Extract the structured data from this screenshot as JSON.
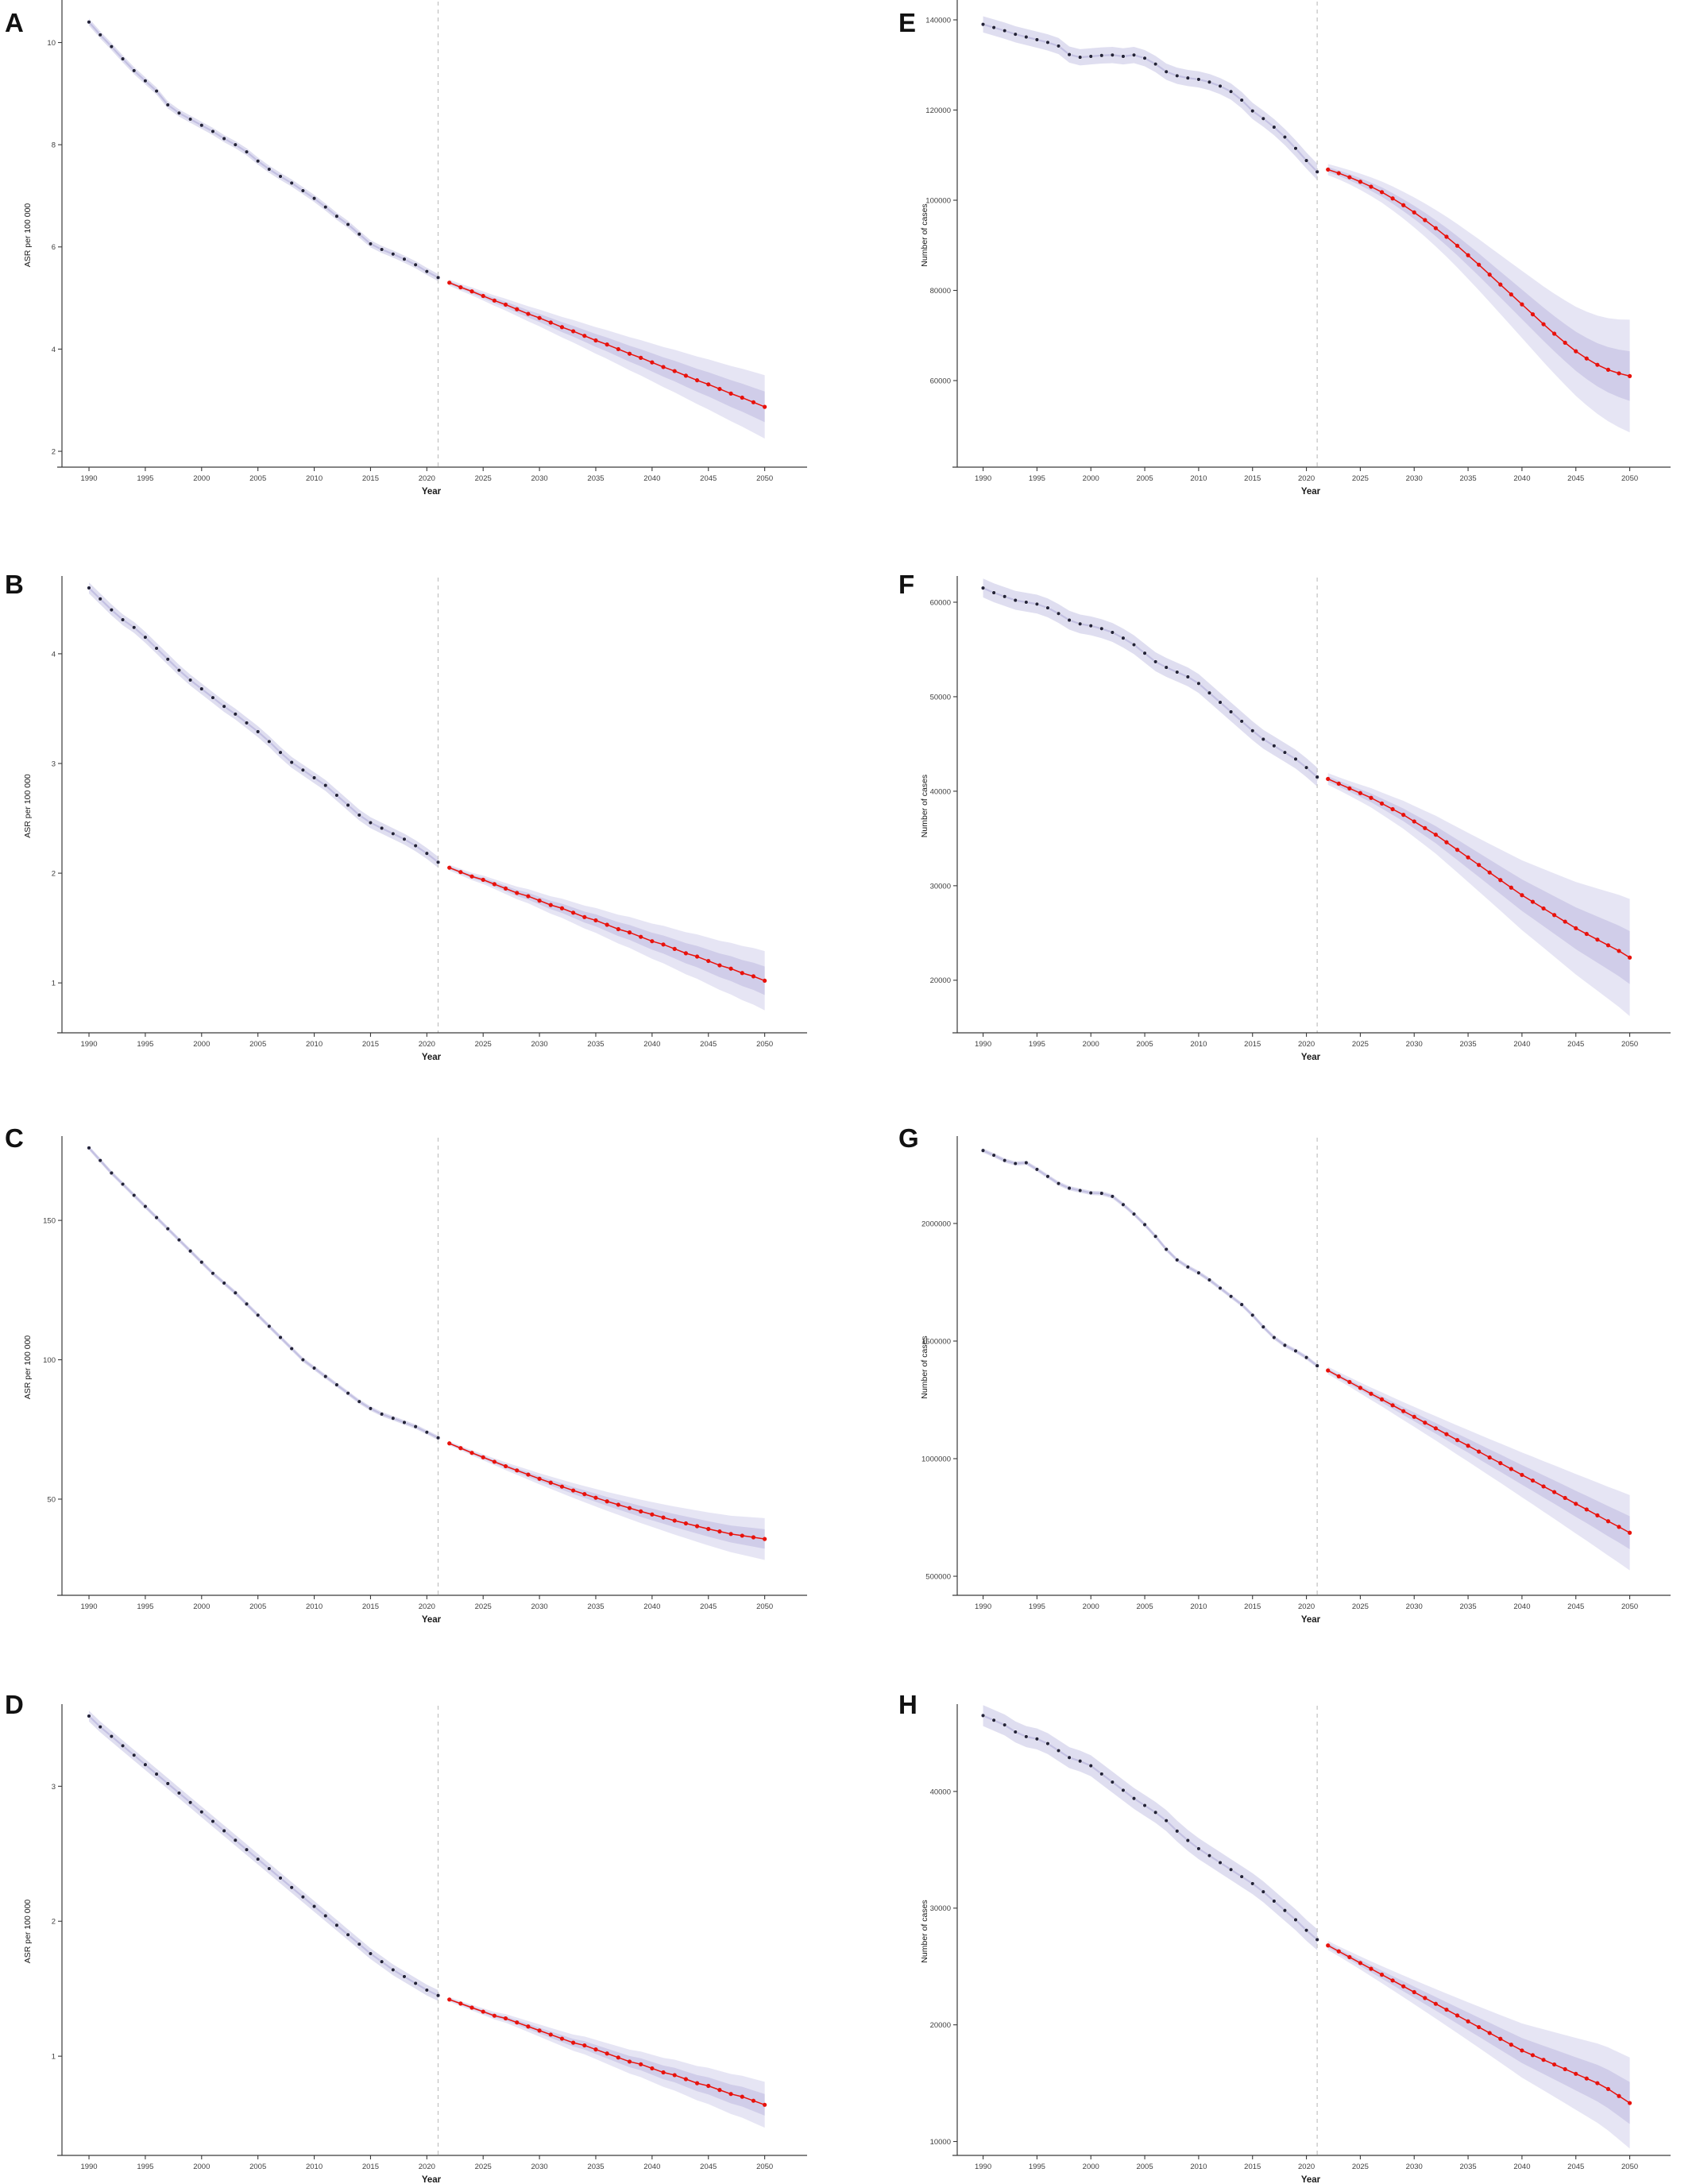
{
  "colors": {
    "observed_point": "#232338",
    "observed_line": "#c3c0e2",
    "band_outer": "#dcdaf0",
    "band_inner": "#b9b5dd",
    "projected": "#e8120c",
    "dashed_line": "#c2c2c2",
    "axis": "#3a3a3a",
    "tick_text": "#404040",
    "label_text": "#1a1a1a"
  },
  "chart_data": [
    {
      "panel_label": "A",
      "type": "line",
      "xlabel": "Year",
      "ylabel": "ASR per 100 000",
      "xticks": [
        1990,
        1995,
        2000,
        2005,
        2010,
        2015,
        2020,
        2025,
        2030,
        2035,
        2040,
        2045,
        2050
      ],
      "yticks": [
        2,
        4,
        6,
        8,
        10
      ],
      "ylim": [
        1.69,
        10.77
      ],
      "xlim": [
        1987.6,
        2053.2
      ],
      "forecast_divider_year": 2021,
      "series": [
        {
          "name": "observed",
          "start_year": 1990,
          "values": [
            10.4,
            10.15,
            9.92,
            9.68,
            9.45,
            9.25,
            9.05,
            8.78,
            8.62,
            8.5,
            8.38,
            8.26,
            8.12,
            8.0,
            7.86,
            7.68,
            7.52,
            7.38,
            7.25,
            7.1,
            6.95,
            6.78,
            6.6,
            6.44,
            6.25,
            6.06,
            5.95,
            5.86,
            5.76,
            5.65,
            5.52,
            5.4
          ]
        },
        {
          "name": "projected",
          "start_year": 2022,
          "values": [
            5.3,
            5.21,
            5.13,
            5.04,
            4.95,
            4.87,
            4.78,
            4.69,
            4.61,
            4.52,
            4.43,
            4.35,
            4.26,
            4.17,
            4.09,
            4.0,
            3.91,
            3.83,
            3.74,
            3.65,
            3.57,
            3.48,
            3.39,
            3.31,
            3.22,
            3.13,
            3.05,
            2.96,
            2.87
          ]
        }
      ],
      "ci": {
        "observed_halfwidth": 0.07,
        "projected_inner_halfwidth_2050": 0.3,
        "projected_outer_halfwidth_2050": 0.62
      }
    },
    {
      "panel_label": "B",
      "type": "line",
      "xlabel": "Year",
      "ylabel": "ASR per 100 000",
      "xticks": [
        1990,
        1995,
        2000,
        2005,
        2010,
        2015,
        2020,
        2025,
        2030,
        2035,
        2040,
        2045,
        2050
      ],
      "yticks": [
        1,
        2,
        3,
        4
      ],
      "ylim": [
        0.545,
        4.68
      ],
      "xlim": [
        1987.6,
        2053.2
      ],
      "forecast_divider_year": 2021,
      "series": [
        {
          "name": "observed",
          "start_year": 1990,
          "values": [
            4.6,
            4.5,
            4.4,
            4.31,
            4.24,
            4.15,
            4.05,
            3.95,
            3.85,
            3.76,
            3.68,
            3.6,
            3.52,
            3.45,
            3.37,
            3.29,
            3.2,
            3.1,
            3.01,
            2.94,
            2.87,
            2.8,
            2.71,
            2.62,
            2.53,
            2.46,
            2.41,
            2.36,
            2.31,
            2.25,
            2.18,
            2.1
          ]
        },
        {
          "name": "projected",
          "start_year": 2022,
          "values": [
            2.05,
            2.01,
            1.97,
            1.94,
            1.9,
            1.86,
            1.82,
            1.79,
            1.75,
            1.71,
            1.68,
            1.64,
            1.6,
            1.57,
            1.53,
            1.49,
            1.46,
            1.42,
            1.38,
            1.35,
            1.31,
            1.27,
            1.24,
            1.2,
            1.16,
            1.13,
            1.09,
            1.06,
            1.02
          ]
        }
      ],
      "ci": {
        "observed_halfwidth": 0.05,
        "projected_inner_halfwidth_2050": 0.13,
        "projected_outer_halfwidth_2050": 0.27
      }
    },
    {
      "panel_label": "C",
      "type": "line",
      "xlabel": "Year",
      "ylabel": "ASR per 100 000",
      "xticks": [
        1990,
        1995,
        2000,
        2005,
        2010,
        2015,
        2020,
        2025,
        2030,
        2035,
        2040,
        2045,
        2050
      ],
      "yticks": [
        50,
        100,
        150
      ],
      "ylim": [
        15.5,
        179.1
      ],
      "xlim": [
        1987.6,
        2053.2
      ],
      "forecast_divider_year": 2021,
      "series": [
        {
          "name": "observed",
          "start_year": 1990,
          "values": [
            176,
            171.5,
            167,
            163,
            159,
            155,
            151,
            147,
            143,
            139,
            135,
            131,
            127.5,
            124,
            120,
            116,
            112,
            108,
            104,
            100,
            97,
            94,
            91,
            88,
            85,
            82.5,
            80.5,
            79,
            77.5,
            76,
            74,
            72
          ]
        },
        {
          "name": "projected",
          "start_year": 2022,
          "values": [
            70,
            68.3,
            66.6,
            65,
            63.4,
            61.8,
            60.3,
            58.8,
            57.3,
            55.9,
            54.5,
            53.1,
            51.8,
            50.5,
            49.2,
            48,
            46.8,
            45.6,
            44.5,
            43.4,
            42.3,
            41.3,
            40.3,
            39.3,
            38.4,
            37.5,
            36.9,
            36.3,
            35.7
          ]
        }
      ],
      "ci": {
        "observed_halfwidth": 0.8,
        "projected_inner_halfwidth_2050": 3.5,
        "projected_outer_halfwidth_2050": 7.5
      }
    },
    {
      "panel_label": "D",
      "type": "line",
      "xlabel": "Year",
      "ylabel": "ASR per 100 000",
      "xticks": [
        1990,
        1995,
        2000,
        2005,
        2010,
        2015,
        2020,
        2025,
        2030,
        2035,
        2040,
        2045,
        2050
      ],
      "yticks": [
        1,
        2,
        3
      ],
      "ylim": [
        0.265,
        3.585
      ],
      "xlim": [
        1987.6,
        2053.2
      ],
      "forecast_divider_year": 2021,
      "series": [
        {
          "name": "observed",
          "start_year": 1990,
          "values": [
            3.52,
            3.44,
            3.37,
            3.3,
            3.23,
            3.16,
            3.09,
            3.02,
            2.95,
            2.88,
            2.81,
            2.74,
            2.67,
            2.6,
            2.53,
            2.46,
            2.39,
            2.32,
            2.25,
            2.18,
            2.11,
            2.04,
            1.97,
            1.9,
            1.83,
            1.76,
            1.7,
            1.64,
            1.59,
            1.54,
            1.49,
            1.45
          ]
        },
        {
          "name": "projected",
          "start_year": 2022,
          "values": [
            1.42,
            1.39,
            1.36,
            1.33,
            1.3,
            1.28,
            1.25,
            1.22,
            1.19,
            1.16,
            1.13,
            1.1,
            1.08,
            1.05,
            1.02,
            0.99,
            0.96,
            0.94,
            0.91,
            0.88,
            0.86,
            0.83,
            0.8,
            0.78,
            0.75,
            0.72,
            0.7,
            0.67,
            0.64
          ]
        }
      ],
      "ci": {
        "observed_halfwidth": 0.04,
        "projected_inner_halfwidth_2050": 0.08,
        "projected_outer_halfwidth_2050": 0.17
      }
    },
    {
      "panel_label": "E",
      "type": "line",
      "xlabel": "Year",
      "ylabel": "Number of cases",
      "xticks": [
        1990,
        1995,
        2000,
        2005,
        2010,
        2015,
        2020,
        2025,
        2030,
        2035,
        2040,
        2045,
        2050
      ],
      "yticks": [
        60000,
        80000,
        100000,
        120000,
        140000
      ],
      "ylim": [
        40800,
        143700
      ],
      "xlim": [
        1987.6,
        2053.2
      ],
      "forecast_divider_year": 2021,
      "series": [
        {
          "name": "observed",
          "start_year": 1990,
          "values": [
            139000,
            138300,
            137600,
            136800,
            136200,
            135600,
            135000,
            134200,
            132300,
            131700,
            131900,
            132100,
            132200,
            131900,
            132200,
            131500,
            130200,
            128500,
            127600,
            127100,
            126800,
            126200,
            125300,
            124100,
            122200,
            119800,
            118100,
            116200,
            114000,
            111500,
            108800,
            106300
          ]
        },
        {
          "name": "projected",
          "start_year": 2022,
          "values": [
            106800,
            106000,
            105100,
            104100,
            103000,
            101800,
            100400,
            98900,
            97300,
            95600,
            93800,
            91900,
            89900,
            87800,
            85700,
            83500,
            81300,
            79100,
            76900,
            74700,
            72500,
            70400,
            68400,
            66500,
            64900,
            63500,
            62400,
            61600,
            61000
          ]
        }
      ],
      "ci": {
        "observed_halfwidth": 1800,
        "projected_inner_halfwidth_2050": 5500,
        "projected_outer_halfwidth_2050": 12500
      }
    },
    {
      "panel_label": "F",
      "type": "line",
      "xlabel": "Year",
      "ylabel": "Number of cases",
      "xticks": [
        1990,
        1995,
        2000,
        2005,
        2010,
        2015,
        2020,
        2025,
        2030,
        2035,
        2040,
        2045,
        2050
      ],
      "yticks": [
        20000,
        30000,
        40000,
        50000,
        60000
      ],
      "ylim": [
        14437,
        62437
      ],
      "xlim": [
        1987.6,
        2053.2
      ],
      "forecast_divider_year": 2021,
      "series": [
        {
          "name": "observed",
          "start_year": 1990,
          "values": [
            61500,
            61000,
            60600,
            60200,
            60000,
            59800,
            59400,
            58800,
            58100,
            57700,
            57500,
            57200,
            56800,
            56200,
            55500,
            54600,
            53700,
            53100,
            52600,
            52100,
            51400,
            50400,
            49400,
            48400,
            47400,
            46400,
            45500,
            44800,
            44100,
            43400,
            42500,
            41500
          ]
        },
        {
          "name": "projected",
          "start_year": 2022,
          "values": [
            41300,
            40800,
            40300,
            39800,
            39300,
            38700,
            38100,
            37500,
            36800,
            36100,
            35400,
            34600,
            33800,
            33000,
            32200,
            31400,
            30600,
            29800,
            29000,
            28300,
            27600,
            26900,
            26200,
            25500,
            24900,
            24300,
            23700,
            23100,
            22400
          ]
        }
      ],
      "ci": {
        "observed_halfwidth": 1000,
        "projected_inner_halfwidth_2050": 2800,
        "projected_outer_halfwidth_2050": 6200
      }
    },
    {
      "panel_label": "G",
      "type": "line",
      "xlabel": "Year",
      "ylabel": "Number of cases",
      "xticks": [
        1990,
        1995,
        2000,
        2005,
        2010,
        2015,
        2020,
        2025,
        2030,
        2035,
        2040,
        2045,
        2050
      ],
      "yticks": [
        500000,
        1000000,
        1500000,
        2000000
      ],
      "ylim": [
        419000,
        2358000
      ],
      "xlim": [
        1987.6,
        2053.2
      ],
      "forecast_divider_year": 2021,
      "series": [
        {
          "name": "observed",
          "start_year": 1990,
          "values": [
            2310000,
            2290000,
            2268000,
            2255000,
            2258000,
            2230000,
            2200000,
            2170000,
            2150000,
            2140000,
            2130000,
            2128000,
            2115000,
            2080000,
            2040000,
            1995000,
            1945000,
            1890000,
            1845000,
            1815000,
            1790000,
            1760000,
            1725000,
            1690000,
            1655000,
            1610000,
            1560000,
            1515000,
            1482000,
            1458000,
            1430000,
            1395000
          ]
        },
        {
          "name": "projected",
          "start_year": 2022,
          "values": [
            1375000,
            1350000,
            1326000,
            1301000,
            1276000,
            1252000,
            1227000,
            1202000,
            1178000,
            1153000,
            1129000,
            1104000,
            1079000,
            1055000,
            1030000,
            1005000,
            981000,
            956000,
            931000,
            907000,
            882000,
            858000,
            833000,
            808000,
            784000,
            759000,
            734000,
            710000,
            685000
          ]
        }
      ],
      "ci": {
        "observed_halfwidth": 9000,
        "projected_inner_halfwidth_2050": 70000,
        "projected_outer_halfwidth_2050": 160000
      }
    },
    {
      "panel_label": "H",
      "type": "line",
      "xlabel": "Year",
      "ylabel": "Number of cases",
      "xticks": [
        1990,
        1995,
        2000,
        2005,
        2010,
        2015,
        2020,
        2025,
        2030,
        2035,
        2040,
        2045,
        2050
      ],
      "yticks": [
        10000,
        20000,
        30000,
        40000
      ],
      "ylim": [
        8810,
        47210
      ],
      "xlim": [
        1987.6,
        2053.2
      ],
      "forecast_divider_year": 2021,
      "series": [
        {
          "name": "observed",
          "start_year": 1990,
          "values": [
            46500,
            46100,
            45700,
            45100,
            44700,
            44500,
            44100,
            43500,
            42900,
            42600,
            42200,
            41500,
            40800,
            40100,
            39400,
            38800,
            38200,
            37500,
            36600,
            35800,
            35100,
            34500,
            33900,
            33300,
            32700,
            32100,
            31400,
            30600,
            29800,
            29000,
            28100,
            27300
          ]
        },
        {
          "name": "projected",
          "start_year": 2022,
          "values": [
            26800,
            26300,
            25800,
            25300,
            24800,
            24300,
            23800,
            23300,
            22800,
            22300,
            21800,
            21300,
            20800,
            20300,
            19800,
            19300,
            18800,
            18300,
            17800,
            17400,
            17000,
            16600,
            16200,
            15800,
            15400,
            15000,
            14500,
            13900,
            13300
          ]
        }
      ],
      "ci": {
        "observed_halfwidth": 900,
        "projected_inner_halfwidth_2050": 1800,
        "projected_outer_halfwidth_2050": 3900
      }
    }
  ]
}
